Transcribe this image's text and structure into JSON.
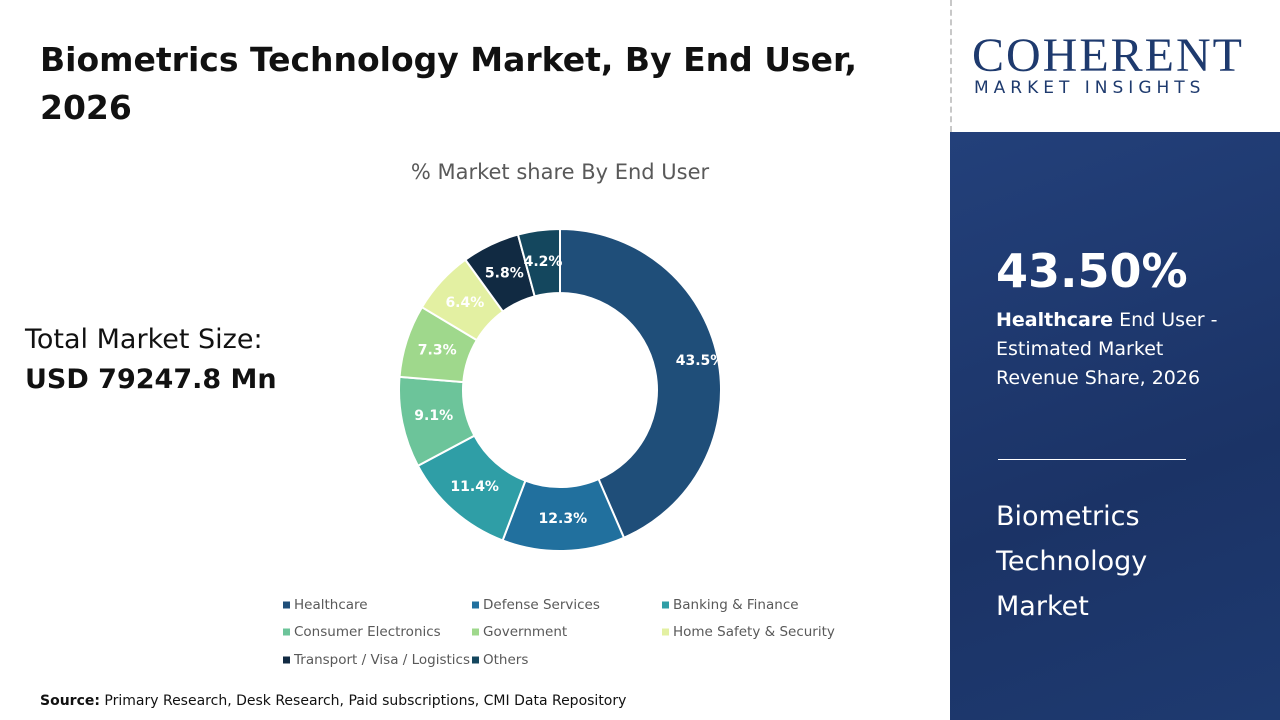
{
  "chart_data": {
    "type": "donut",
    "title": "Biometrics Technology Market, By End User, 2026",
    "subtitle": "% Market share By End User",
    "categories": [
      "Healthcare",
      "Defense Services",
      "Banking & Finance",
      "Consumer Electronics",
      "Government",
      "Home Safety & Security",
      "Transport / Visa / Logistics",
      "Others"
    ],
    "values": [
      43.5,
      12.3,
      11.4,
      9.1,
      7.3,
      6.4,
      5.8,
      4.2
    ],
    "value_labels": [
      "43.5%",
      "12.3%",
      "11.4%",
      "9.1%",
      "7.3%",
      "6.4%",
      "5.8%",
      "4.2%"
    ],
    "colors": [
      "#1f4e79",
      "#21709e",
      "#2f9ea6",
      "#6cc49a",
      "#9fd88c",
      "#e3f0a2",
      "#112a42",
      "#14475e"
    ],
    "legend": "bottom"
  },
  "market_size": {
    "label": "Total Market Size:",
    "value": "USD 79247.8 Mn"
  },
  "source": {
    "label": "Source:",
    "text": "Primary Research, Desk Research, Paid subscriptions, CMI Data Repository"
  },
  "logo": {
    "name": "COHERENT",
    "tagline": "MARKET INSIGHTS"
  },
  "panel": {
    "highlight": "43.50%",
    "segment": "Healthcare",
    "description": "End User - Estimated Market Revenue Share, 2026",
    "market": "Biometrics Technology Market"
  }
}
